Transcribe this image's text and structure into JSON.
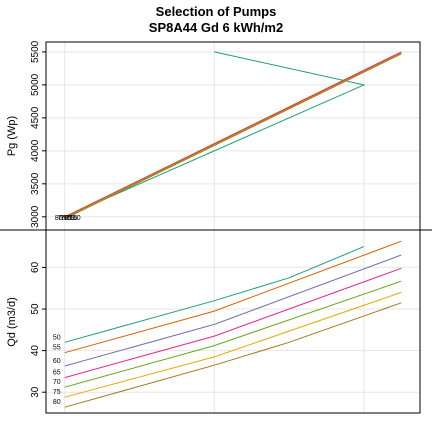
{
  "chart_data": [
    {
      "panel": "top",
      "type": "line",
      "title": "Selection of Pumps",
      "subtitle": "SP8A44 Gd 6 kWh/m2",
      "ylabel": "Pg (Wp)",
      "xlabel": "",
      "ylim": [
        2800,
        5650
      ],
      "xlim": [
        0.75,
        5.75
      ],
      "yticks": [
        3000,
        3500,
        4000,
        4500,
        5000,
        5500
      ],
      "grid": true,
      "point_labels": [
        "80",
        "75",
        "70",
        "65",
        "60",
        "55",
        "50"
      ],
      "series": [
        {
          "color": "#1b9e77",
          "x": [
            1.0,
            5.0,
            3.0
          ],
          "y": [
            3000,
            5000,
            5500
          ]
        },
        {
          "color": "#d95f02",
          "x": [
            1.0,
            5.5
          ],
          "y": [
            3000,
            5500
          ]
        },
        {
          "color": "#7570b3",
          "x": [
            1.0,
            5.5
          ],
          "y": [
            2990,
            5490
          ]
        },
        {
          "color": "#e7298a",
          "x": [
            1.0,
            5.5
          ],
          "y": [
            2985,
            5495
          ]
        },
        {
          "color": "#66a61e",
          "x": [
            1.0,
            5.5
          ],
          "y": [
            2980,
            5480
          ]
        },
        {
          "color": "#e6ab02",
          "x": [
            1.0,
            5.5
          ],
          "y": [
            2975,
            5475
          ]
        },
        {
          "color": "#a6761d",
          "x": [
            1.0,
            5.5
          ],
          "y": [
            2970,
            5470
          ]
        }
      ]
    },
    {
      "panel": "bottom",
      "type": "line",
      "title": "",
      "ylabel": "Qd (m3/d)",
      "xlabel": "",
      "ylim": [
        25,
        69
      ],
      "xlim": [
        0.75,
        5.75
      ],
      "yticks": [
        30,
        40,
        50,
        60
      ],
      "grid": true,
      "series": [
        {
          "name": "50",
          "color": "#1b9e77",
          "x": [
            1.0,
            3.0,
            4.0,
            5.0
          ],
          "y": [
            42.0,
            52.0,
            57.5,
            65.0
          ]
        },
        {
          "name": "55",
          "color": "#d95f02",
          "x": [
            1.0,
            3.0,
            5.5
          ],
          "y": [
            39.5,
            49.5,
            66.3
          ]
        },
        {
          "name": "60",
          "color": "#7570b3",
          "x": [
            1.0,
            3.0,
            5.5
          ],
          "y": [
            36.3,
            46.3,
            63.0
          ]
        },
        {
          "name": "65",
          "color": "#e7298a",
          "x": [
            1.0,
            3.0,
            5.5
          ],
          "y": [
            33.5,
            43.5,
            59.8
          ]
        },
        {
          "name": "70",
          "color": "#66a61e",
          "x": [
            1.0,
            3.0,
            5.5
          ],
          "y": [
            31.2,
            41.2,
            56.7
          ]
        },
        {
          "name": "75",
          "color": "#e6ab02",
          "x": [
            1.0,
            3.0,
            5.5
          ],
          "y": [
            28.8,
            38.5,
            54.0
          ]
        },
        {
          "name": "80",
          "color": "#a6761d",
          "x": [
            1.0,
            3.0,
            4.0,
            5.5
          ],
          "y": [
            26.4,
            36.5,
            42.0,
            51.5
          ]
        }
      ]
    }
  ]
}
